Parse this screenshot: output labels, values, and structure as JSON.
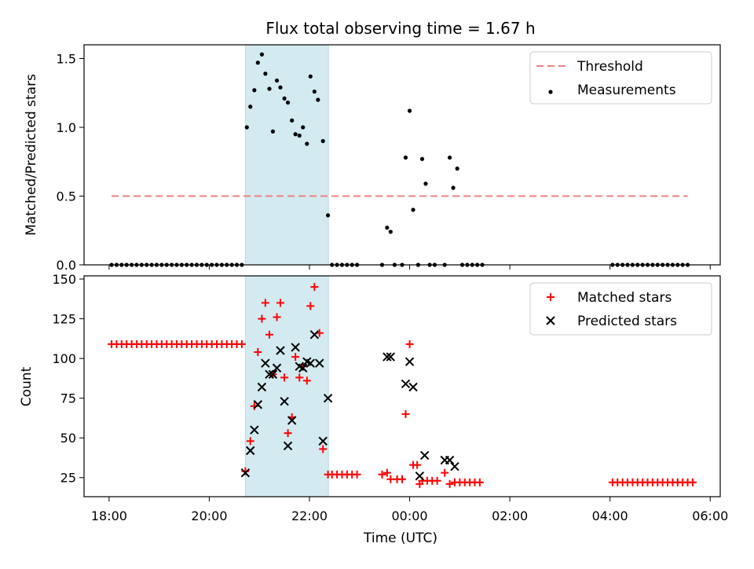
{
  "chart_data": {
    "title": "Flux total observing time = 1.67 h",
    "xlabel": "Time (UTC)",
    "x_unit": "hours since 18:00 UTC",
    "xlim": [
      -0.5,
      12.2
    ],
    "x_ticks": [
      {
        "value": 0,
        "label": "18:00"
      },
      {
        "value": 2,
        "label": "20:00"
      },
      {
        "value": 4,
        "label": "22:00"
      },
      {
        "value": 6,
        "label": "00:00"
      },
      {
        "value": 8,
        "label": "02:00"
      },
      {
        "value": 10,
        "label": "04:00"
      },
      {
        "value": 12,
        "label": "06:00"
      }
    ],
    "shaded_interval": {
      "x0": 2.72,
      "x1": 4.38,
      "color": "#d2eaf0"
    },
    "panels": [
      {
        "type": "scatter",
        "ylabel": "Matched/Predicted stars",
        "ylim": [
          0,
          1.6
        ],
        "y_ticks": [
          0.0,
          0.5,
          1.0,
          1.5
        ],
        "y_tick_labels": [
          "0.0",
          "0.5",
          "1.0",
          "1.5"
        ],
        "legend": {
          "position": "top-right",
          "entries": [
            {
              "label": "Threshold",
              "kind": "dashed-line",
              "color": "#f08080"
            },
            {
              "label": "Measurements",
              "kind": "dot",
              "color": "#000000"
            }
          ]
        },
        "threshold": {
          "y": 0.5,
          "x0": 0.05,
          "x1": 11.55,
          "color": "#f08080"
        },
        "measurements": {
          "color": "#000000",
          "points": [
            [
              0.05,
              0
            ],
            [
              0.15,
              0
            ],
            [
              0.25,
              0
            ],
            [
              0.35,
              0
            ],
            [
              0.45,
              0
            ],
            [
              0.55,
              0
            ],
            [
              0.65,
              0
            ],
            [
              0.75,
              0
            ],
            [
              0.85,
              0
            ],
            [
              0.95,
              0
            ],
            [
              1.05,
              0
            ],
            [
              1.15,
              0
            ],
            [
              1.25,
              0
            ],
            [
              1.35,
              0
            ],
            [
              1.45,
              0
            ],
            [
              1.55,
              0
            ],
            [
              1.65,
              0
            ],
            [
              1.75,
              0
            ],
            [
              1.85,
              0
            ],
            [
              1.95,
              0
            ],
            [
              2.05,
              0
            ],
            [
              2.15,
              0
            ],
            [
              2.25,
              0
            ],
            [
              2.35,
              0
            ],
            [
              2.45,
              0
            ],
            [
              2.55,
              0
            ],
            [
              2.65,
              0
            ],
            [
              2.75,
              1.0
            ],
            [
              2.82,
              1.15
            ],
            [
              2.9,
              1.27
            ],
            [
              2.97,
              1.47
            ],
            [
              3.05,
              1.53
            ],
            [
              3.12,
              1.39
            ],
            [
              3.2,
              1.28
            ],
            [
              3.27,
              0.97
            ],
            [
              3.35,
              1.34
            ],
            [
              3.42,
              1.29
            ],
            [
              3.5,
              1.21
            ],
            [
              3.57,
              1.18
            ],
            [
              3.65,
              1.05
            ],
            [
              3.72,
              0.95
            ],
            [
              3.8,
              0.94
            ],
            [
              3.87,
              1.0
            ],
            [
              3.95,
              0.88
            ],
            [
              4.02,
              1.37
            ],
            [
              4.1,
              1.26
            ],
            [
              4.17,
              1.2
            ],
            [
              4.27,
              0.9
            ],
            [
              4.37,
              0.36
            ],
            [
              4.45,
              0
            ],
            [
              4.55,
              0
            ],
            [
              4.65,
              0
            ],
            [
              4.75,
              0
            ],
            [
              4.85,
              0
            ],
            [
              4.95,
              0
            ],
            [
              5.45,
              0
            ],
            [
              5.55,
              0.27
            ],
            [
              5.62,
              0.24
            ],
            [
              5.7,
              0
            ],
            [
              5.85,
              0
            ],
            [
              5.92,
              0.78
            ],
            [
              6.0,
              1.12
            ],
            [
              6.07,
              0.4
            ],
            [
              6.17,
              0
            ],
            [
              6.25,
              0.77
            ],
            [
              6.32,
              0.59
            ],
            [
              6.4,
              0
            ],
            [
              6.5,
              0
            ],
            [
              6.7,
              0
            ],
            [
              6.8,
              0.78
            ],
            [
              6.87,
              0.56
            ],
            [
              6.95,
              0.7
            ],
            [
              7.05,
              0
            ],
            [
              7.15,
              0
            ],
            [
              7.25,
              0
            ],
            [
              7.35,
              0
            ],
            [
              7.45,
              0
            ],
            [
              10.05,
              0
            ],
            [
              10.15,
              0
            ],
            [
              10.25,
              0
            ],
            [
              10.35,
              0
            ],
            [
              10.45,
              0
            ],
            [
              10.55,
              0
            ],
            [
              10.65,
              0
            ],
            [
              10.75,
              0
            ],
            [
              10.85,
              0
            ],
            [
              10.95,
              0
            ],
            [
              11.05,
              0
            ],
            [
              11.15,
              0
            ],
            [
              11.25,
              0
            ],
            [
              11.35,
              0
            ],
            [
              11.45,
              0
            ],
            [
              11.55,
              0
            ]
          ]
        }
      },
      {
        "type": "scatter",
        "ylabel": "Count",
        "ylim": [
          13,
          152
        ],
        "y_ticks": [
          25,
          50,
          75,
          100,
          125,
          150
        ],
        "y_tick_labels": [
          "25",
          "50",
          "75",
          "100",
          "125",
          "150"
        ],
        "legend": {
          "position": "top-right",
          "entries": [
            {
              "label": "Matched stars",
              "kind": "plus",
              "color": "#ff0000"
            },
            {
              "label": "Predicted stars",
              "kind": "cross",
              "color": "#000000"
            }
          ]
        },
        "series": [
          {
            "name": "Matched stars",
            "marker": "plus",
            "color": "#ff0000",
            "points": [
              [
                0.05,
                109
              ],
              [
                0.15,
                109
              ],
              [
                0.25,
                109
              ],
              [
                0.35,
                109
              ],
              [
                0.45,
                109
              ],
              [
                0.55,
                109
              ],
              [
                0.65,
                109
              ],
              [
                0.75,
                109
              ],
              [
                0.85,
                109
              ],
              [
                0.95,
                109
              ],
              [
                1.05,
                109
              ],
              [
                1.15,
                109
              ],
              [
                1.25,
                109
              ],
              [
                1.35,
                109
              ],
              [
                1.45,
                109
              ],
              [
                1.55,
                109
              ],
              [
                1.65,
                109
              ],
              [
                1.75,
                109
              ],
              [
                1.85,
                109
              ],
              [
                1.95,
                109
              ],
              [
                2.05,
                109
              ],
              [
                2.15,
                109
              ],
              [
                2.25,
                109
              ],
              [
                2.35,
                109
              ],
              [
                2.45,
                109
              ],
              [
                2.55,
                109
              ],
              [
                2.65,
                109
              ],
              [
                2.72,
                29
              ],
              [
                2.82,
                48
              ],
              [
                2.9,
                70
              ],
              [
                2.97,
                104
              ],
              [
                3.05,
                125
              ],
              [
                3.12,
                135
              ],
              [
                3.2,
                115
              ],
              [
                3.27,
                90
              ],
              [
                3.35,
                126
              ],
              [
                3.42,
                135
              ],
              [
                3.5,
                88
              ],
              [
                3.57,
                53
              ],
              [
                3.65,
                63
              ],
              [
                3.72,
                101
              ],
              [
                3.8,
                88
              ],
              [
                3.87,
                95
              ],
              [
                3.95,
                86
              ],
              [
                4.02,
                133
              ],
              [
                4.1,
                145
              ],
              [
                4.2,
                116
              ],
              [
                4.27,
                43
              ],
              [
                4.37,
                27
              ],
              [
                4.45,
                27
              ],
              [
                4.55,
                27
              ],
              [
                4.65,
                27
              ],
              [
                4.75,
                27
              ],
              [
                4.85,
                27
              ],
              [
                4.95,
                27
              ],
              [
                5.45,
                27
              ],
              [
                5.55,
                28
              ],
              [
                5.62,
                24
              ],
              [
                5.75,
                24
              ],
              [
                5.85,
                24
              ],
              [
                5.92,
                65
              ],
              [
                6.0,
                109
              ],
              [
                6.07,
                33
              ],
              [
                6.15,
                33
              ],
              [
                6.2,
                21
              ],
              [
                6.25,
                23
              ],
              [
                6.35,
                23
              ],
              [
                6.45,
                23
              ],
              [
                6.55,
                23
              ],
              [
                6.7,
                28
              ],
              [
                6.8,
                21
              ],
              [
                6.9,
                22
              ],
              [
                7.0,
                22
              ],
              [
                7.1,
                22
              ],
              [
                7.2,
                22
              ],
              [
                7.3,
                22
              ],
              [
                7.4,
                22
              ],
              [
                10.05,
                22
              ],
              [
                10.15,
                22
              ],
              [
                10.25,
                22
              ],
              [
                10.35,
                22
              ],
              [
                10.45,
                22
              ],
              [
                10.55,
                22
              ],
              [
                10.65,
                22
              ],
              [
                10.75,
                22
              ],
              [
                10.85,
                22
              ],
              [
                10.95,
                22
              ],
              [
                11.05,
                22
              ],
              [
                11.15,
                22
              ],
              [
                11.25,
                22
              ],
              [
                11.35,
                22
              ],
              [
                11.45,
                22
              ],
              [
                11.55,
                22
              ],
              [
                11.65,
                22
              ]
            ]
          },
          {
            "name": "Predicted stars",
            "marker": "cross",
            "color": "#000000",
            "points": [
              [
                2.72,
                28
              ],
              [
                2.82,
                42
              ],
              [
                2.9,
                55
              ],
              [
                2.97,
                71
              ],
              [
                3.05,
                82
              ],
              [
                3.12,
                97
              ],
              [
                3.2,
                90
              ],
              [
                3.27,
                90
              ],
              [
                3.35,
                94
              ],
              [
                3.42,
                105
              ],
              [
                3.5,
                73
              ],
              [
                3.57,
                45
              ],
              [
                3.65,
                61
              ],
              [
                3.72,
                107
              ],
              [
                3.8,
                95
              ],
              [
                3.87,
                94
              ],
              [
                3.95,
                98
              ],
              [
                4.02,
                97
              ],
              [
                4.1,
                115
              ],
              [
                4.2,
                97
              ],
              [
                4.27,
                48
              ],
              [
                4.37,
                75
              ],
              [
                5.55,
                101
              ],
              [
                5.62,
                101
              ],
              [
                5.92,
                84
              ],
              [
                6.0,
                98
              ],
              [
                6.07,
                82
              ],
              [
                6.2,
                26
              ],
              [
                6.3,
                39
              ],
              [
                6.7,
                36
              ],
              [
                6.8,
                36
              ],
              [
                6.9,
                32
              ]
            ]
          }
        ]
      }
    ]
  }
}
